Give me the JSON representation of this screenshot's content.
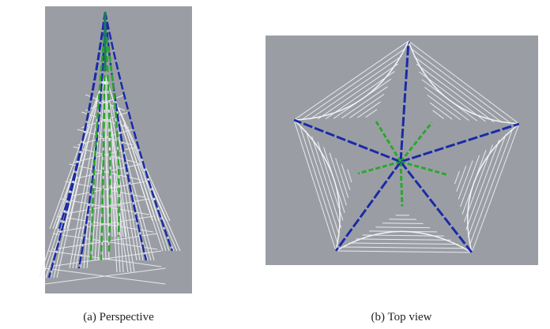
{
  "figure": {
    "captions": [
      "(a) Perspective",
      "(b) Top view"
    ]
  }
}
